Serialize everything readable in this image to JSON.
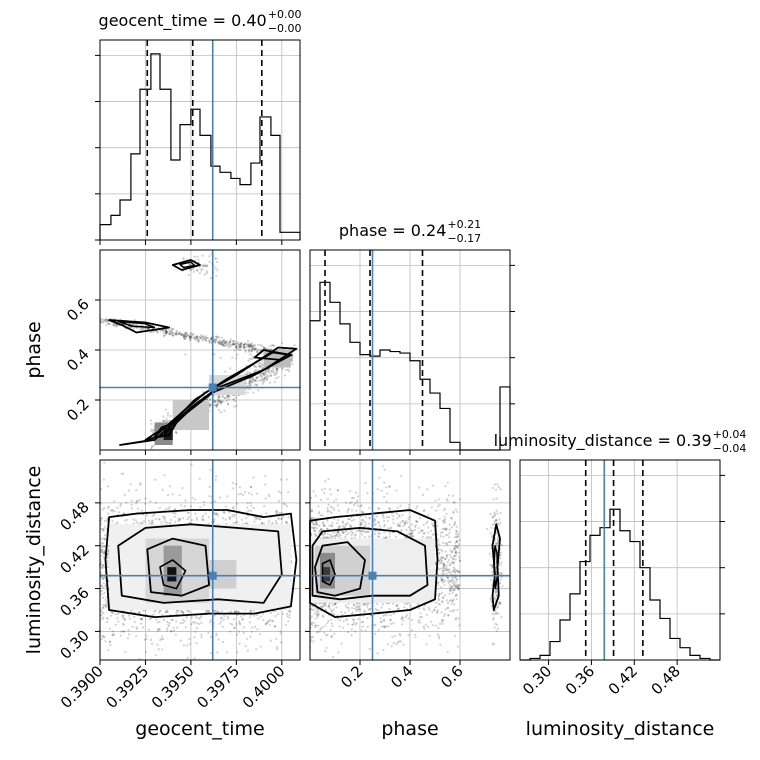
{
  "chart_data": {
    "type": "corner",
    "parameters": [
      {
        "name": "geocent_time",
        "title_label": "geocent_time",
        "title_value": "0.40",
        "title_plus": "+0.00",
        "title_minus": "−0.00",
        "axis_label": "geocent_time",
        "range": [
          0.39,
          0.401
        ],
        "ticks": [
          0.39,
          0.3925,
          0.395,
          0.3975,
          0.4
        ],
        "tick_labels": [
          "0.3900",
          "0.3925",
          "0.3950",
          "0.3975",
          "0.4000"
        ],
        "truth": 0.3962,
        "quantiles": [
          0.3926,
          0.3951,
          0.3989
        ],
        "hist_edges": [
          0.39,
          0.3906,
          0.3911,
          0.3917,
          0.3922,
          0.3928,
          0.3933,
          0.3939,
          0.3944,
          0.395,
          0.3955,
          0.3961,
          0.3966,
          0.3972,
          0.3977,
          0.3983,
          0.3988,
          0.3994,
          0.3999,
          0.4005,
          0.401
        ],
        "hist_values": [
          0.1,
          0.16,
          0.26,
          0.56,
          0.98,
          1.21,
          0.98,
          0.52,
          0.75,
          0.85,
          0.68,
          0.48,
          0.44,
          0.4,
          0.36,
          0.5,
          0.8,
          0.68,
          0.05,
          0.05
        ]
      },
      {
        "name": "phase",
        "title_label": "phase",
        "title_value": "0.24",
        "title_plus": "+0.21",
        "title_minus": "−0.17",
        "axis_label": "phase",
        "range": [
          0.0,
          0.8
        ],
        "ticks": [
          0.2,
          0.4,
          0.6
        ],
        "tick_labels": [
          "0.2",
          "0.4",
          "0.6"
        ],
        "truth": 0.25,
        "quantiles": [
          0.06,
          0.24,
          0.45
        ],
        "hist_edges": [
          0.0,
          0.04,
          0.08,
          0.12,
          0.16,
          0.2,
          0.24,
          0.28,
          0.32,
          0.36,
          0.4,
          0.44,
          0.48,
          0.52,
          0.56,
          0.6,
          0.64,
          0.68,
          0.72,
          0.76,
          0.8
        ],
        "hist_values": [
          0.84,
          1.09,
          0.96,
          0.82,
          0.7,
          0.62,
          0.61,
          0.65,
          0.64,
          0.63,
          0.58,
          0.46,
          0.37,
          0.27,
          0.05,
          0.0,
          0.0,
          0.0,
          0.0,
          0.41
        ]
      },
      {
        "name": "luminosity_distance",
        "title_label": "luminosity_distance",
        "title_value": "0.39",
        "title_plus": "+0.04",
        "title_minus": "−0.04",
        "axis_label": "luminosity_distance",
        "range": [
          0.26,
          0.54
        ],
        "ticks": [
          0.3,
          0.36,
          0.42,
          0.48
        ],
        "tick_labels": [
          "0.30",
          "0.36",
          "0.42",
          "0.48"
        ],
        "truth": 0.378,
        "quantiles": [
          0.352,
          0.391,
          0.432
        ],
        "hist_edges": [
          0.26,
          0.274,
          0.288,
          0.302,
          0.316,
          0.33,
          0.344,
          0.358,
          0.372,
          0.386,
          0.4,
          0.414,
          0.428,
          0.442,
          0.456,
          0.47,
          0.484,
          0.498,
          0.512,
          0.526,
          0.54
        ],
        "hist_values": [
          0.0,
          0.01,
          0.03,
          0.12,
          0.26,
          0.43,
          0.64,
          0.81,
          0.86,
          0.98,
          0.84,
          0.77,
          0.6,
          0.39,
          0.27,
          0.14,
          0.08,
          0.03,
          0.01,
          0.0
        ]
      }
    ],
    "truth_color": "#4682b4",
    "hist_ylim": [
      0,
      1.3
    ]
  }
}
